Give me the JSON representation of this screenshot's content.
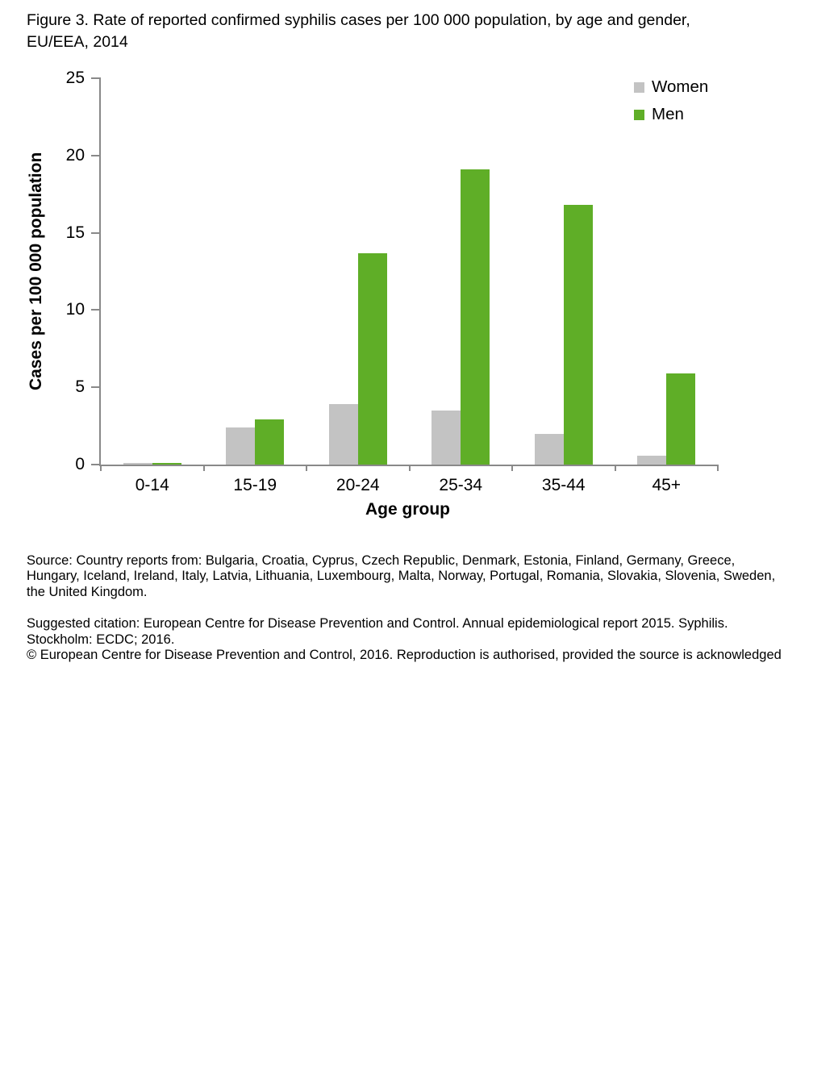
{
  "title": "Figure 3. Rate of reported confirmed syphilis cases per 100 000 population, by age and gender, EU/EEA, 2014",
  "chart_data": {
    "type": "bar",
    "title": "Figure 3. Rate of reported confirmed syphilis cases per 100 000 population, by age and gender, EU/EEA, 2014",
    "categories": [
      "0-14",
      "15-19",
      "20-24",
      "25-34",
      "35-44",
      "45+"
    ],
    "series": [
      {
        "name": "Women",
        "color": "#C3C3C3",
        "values": [
          0.1,
          2.4,
          3.9,
          3.5,
          2.0,
          0.6
        ]
      },
      {
        "name": "Men",
        "color": "#5FAE27",
        "values": [
          0.1,
          2.9,
          13.7,
          19.1,
          16.8,
          5.9
        ]
      }
    ],
    "xlabel": "Age group",
    "ylabel": "Cases per 100 000 population",
    "ylim": [
      0,
      25
    ],
    "yticks": [
      0,
      5,
      10,
      15,
      20,
      25
    ],
    "grid": false,
    "legend_position": "top-right"
  },
  "colors": {
    "women_bar": "#C3C3C3",
    "men_bar": "#5FAE27",
    "axis": "#898989"
  },
  "footer": {
    "source": "Source: Country reports from: Bulgaria, Croatia, Cyprus, Czech Republic, Denmark, Estonia, Finland, Germany, Greece, Hungary, Iceland, Ireland, Italy, Latvia, Lithuania, Luxembourg, Malta, Norway, Portugal, Romania, Slovakia, Slovenia, Sweden, the United Kingdom.",
    "citation": "Suggested citation: European Centre for Disease Prevention and Control. Annual epidemiological report 2015. Syphilis. Stockholm: ECDC; 2016.",
    "copyright": "© European Centre for Disease Prevention and Control, 2016. Reproduction is authorised, provided the source is acknowledged"
  }
}
